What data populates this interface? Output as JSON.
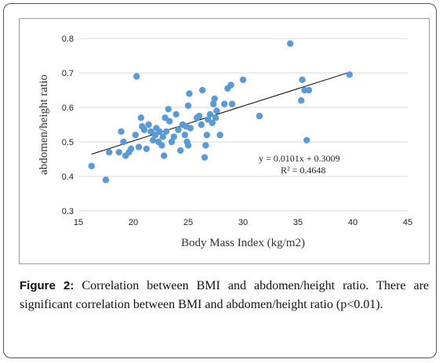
{
  "chart_data": {
    "type": "scatter",
    "xlabel": "Body Mass Index (kg/m2)",
    "ylabel": "abdomen/height ratio",
    "xlim": [
      15,
      45
    ],
    "ylim": [
      0.3,
      0.8
    ],
    "x_ticks": [
      "15",
      "20",
      "25",
      "30",
      "35",
      "40",
      "45"
    ],
    "y_ticks": [
      "0.3",
      "0.4",
      "0.5",
      "0.6",
      "0.7",
      "0.8"
    ],
    "grid": "horizontal",
    "trendline": {
      "slope": 0.0101,
      "intercept": 0.3009,
      "x_range": [
        16.2,
        39.7
      ]
    },
    "equation": "y = 0.0101x + 0.3009",
    "r_squared": "R² = 0.4648",
    "marker_color": "#5b9bd5",
    "line_color": "#000000",
    "points": [
      [
        16.2,
        0.43
      ],
      [
        17.5,
        0.39
      ],
      [
        17.8,
        0.47
      ],
      [
        18.7,
        0.47
      ],
      [
        18.9,
        0.53
      ],
      [
        19.1,
        0.5
      ],
      [
        19.3,
        0.46
      ],
      [
        19.6,
        0.47
      ],
      [
        19.8,
        0.48
      ],
      [
        20.2,
        0.52
      ],
      [
        20.3,
        0.69
      ],
      [
        20.5,
        0.485
      ],
      [
        20.7,
        0.57
      ],
      [
        20.8,
        0.545
      ],
      [
        21.0,
        0.535
      ],
      [
        21.2,
        0.48
      ],
      [
        21.4,
        0.55
      ],
      [
        21.6,
        0.53
      ],
      [
        21.8,
        0.505
      ],
      [
        22.0,
        0.52
      ],
      [
        22.1,
        0.54
      ],
      [
        22.3,
        0.5
      ],
      [
        22.4,
        0.53
      ],
      [
        22.6,
        0.49
      ],
      [
        22.7,
        0.515
      ],
      [
        22.9,
        0.57
      ],
      [
        22.8,
        0.46
      ],
      [
        23.0,
        0.53
      ],
      [
        23.2,
        0.595
      ],
      [
        23.3,
        0.56
      ],
      [
        23.5,
        0.5
      ],
      [
        23.7,
        0.515
      ],
      [
        23.9,
        0.58
      ],
      [
        24.1,
        0.535
      ],
      [
        24.3,
        0.475
      ],
      [
        24.5,
        0.55
      ],
      [
        24.7,
        0.52
      ],
      [
        24.8,
        0.545
      ],
      [
        24.9,
        0.5
      ],
      [
        25.0,
        0.49
      ],
      [
        25.0,
        0.605
      ],
      [
        25.1,
        0.64
      ],
      [
        25.2,
        0.54
      ],
      [
        25.8,
        0.57
      ],
      [
        26.0,
        0.575
      ],
      [
        26.2,
        0.55
      ],
      [
        26.3,
        0.65
      ],
      [
        26.5,
        0.455
      ],
      [
        26.6,
        0.49
      ],
      [
        26.7,
        0.52
      ],
      [
        26.8,
        0.565
      ],
      [
        27.0,
        0.58
      ],
      [
        27.2,
        0.555
      ],
      [
        27.3,
        0.61
      ],
      [
        27.4,
        0.625
      ],
      [
        27.5,
        0.57
      ],
      [
        27.6,
        0.59
      ],
      [
        27.9,
        0.52
      ],
      [
        28.3,
        0.61
      ],
      [
        28.6,
        0.655
      ],
      [
        28.9,
        0.665
      ],
      [
        29.0,
        0.61
      ],
      [
        30.0,
        0.68
      ],
      [
        31.5,
        0.575
      ],
      [
        34.3,
        0.785
      ],
      [
        35.3,
        0.62
      ],
      [
        35.4,
        0.68
      ],
      [
        35.6,
        0.65
      ],
      [
        35.8,
        0.505
      ],
      [
        36.0,
        0.65
      ],
      [
        39.7,
        0.695
      ]
    ]
  },
  "caption": {
    "label": "Figure 2:",
    "text": " Correlation between BMI and abdomen/height ratio. There are significant correlation between BMI and abdomen/height ratio (p<0.01)."
  }
}
